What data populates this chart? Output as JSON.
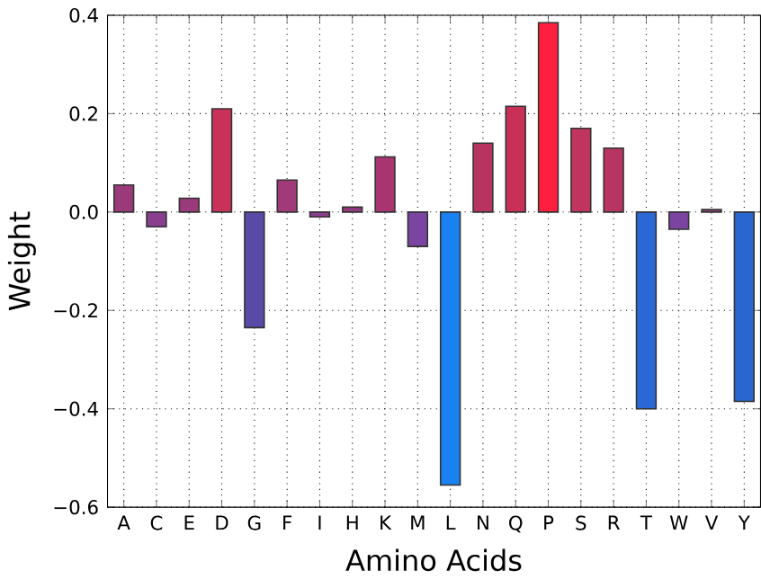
{
  "chart_data": {
    "type": "bar",
    "xlabel": "Amino Acids",
    "ylabel": "Weight",
    "categories": [
      "A",
      "C",
      "E",
      "D",
      "G",
      "F",
      "I",
      "H",
      "K",
      "M",
      "L",
      "N",
      "Q",
      "P",
      "S",
      "R",
      "T",
      "W",
      "V",
      "Y"
    ],
    "values": [
      0.055,
      -0.03,
      0.028,
      0.21,
      -0.235,
      0.065,
      -0.01,
      0.01,
      0.112,
      -0.07,
      -0.555,
      0.14,
      0.215,
      0.385,
      0.17,
      0.13,
      -0.4,
      -0.035,
      0.005,
      -0.385
    ],
    "colors": [
      "#9b3a7a",
      "#8a3e8e",
      "#9b3a7a",
      "#c8325a",
      "#5a4aa8",
      "#a03a78",
      "#8a3e8e",
      "#953a80",
      "#a83570",
      "#7a44a0",
      "#1a82f0",
      "#b83460",
      "#c83058",
      "#ff2040",
      "#c03460",
      "#b83462",
      "#2a68d8",
      "#7a44a0",
      "#9b3a7a",
      "#2a66d0"
    ],
    "ylim": [
      -0.6,
      0.4
    ],
    "yticks": [
      {
        "value": -0.6,
        "label": "−0.6"
      },
      {
        "value": -0.4,
        "label": "−0.4"
      },
      {
        "value": -0.2,
        "label": "−0.2"
      },
      {
        "value": 0.0,
        "label": "0.0"
      },
      {
        "value": 0.2,
        "label": "0.2"
      },
      {
        "value": 0.4,
        "label": "0.4"
      }
    ],
    "grid": true
  }
}
